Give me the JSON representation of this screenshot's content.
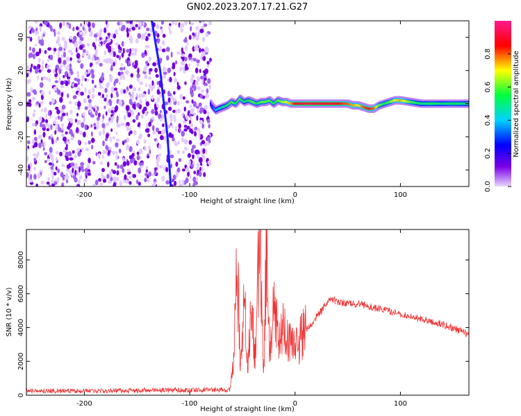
{
  "title": "GN02.2023.207.17.21.G27",
  "chart_data": [
    {
      "type": "heatmap",
      "xlabel": "Height of straight line (km)",
      "ylabel": "Frequency (Hz)",
      "xlim": [
        -255,
        165
      ],
      "ylim": [
        -50,
        50
      ],
      "xticks": [
        -200,
        -100,
        0,
        100
      ],
      "yticks": [
        -40,
        -20,
        0,
        20,
        40
      ],
      "grid": false,
      "colorbar": {
        "label": "Normalized spectral amplitude",
        "range": [
          0,
          1
        ],
        "ticks": [
          0.0,
          0.2,
          0.4,
          0.6,
          0.8
        ],
        "colors": [
          "#e9d6ff",
          "#7a00e6",
          "#0000ff",
          "#00d2ff",
          "#00ff40",
          "#ffff00",
          "#ff0000",
          "#ff1a8c"
        ]
      },
      "noise_region": {
        "x_range": [
          -255,
          -80
        ],
        "frequency_range": [
          -50,
          50
        ],
        "level": 0.15
      },
      "sweep_line": {
        "x": [
          -118,
          -121,
          -128,
          -136
        ],
        "frequency": [
          -50,
          -20,
          20,
          50
        ],
        "level": 0.22
      },
      "signal_track": {
        "x": [
          -80,
          -78,
          -75,
          -72,
          -68,
          -64,
          -60,
          -56,
          -52,
          -48,
          -44,
          -40,
          -36,
          -32,
          -28,
          -24,
          -20,
          -16,
          -12,
          -8,
          -4,
          0,
          10,
          20,
          30,
          40,
          50,
          55,
          60,
          65,
          70,
          75,
          80,
          85,
          90,
          95,
          100,
          110,
          120,
          130,
          140,
          150,
          165
        ],
        "frequency": [
          0,
          -2,
          -4,
          -3,
          -2,
          -1,
          1,
          0,
          3,
          1,
          2,
          1,
          0,
          1,
          1,
          2,
          0,
          2,
          1,
          1,
          0,
          0,
          0,
          0,
          0,
          0,
          0,
          -1,
          -1,
          -2,
          -3,
          -3,
          -1,
          0,
          1,
          2,
          2,
          1,
          0,
          0,
          0,
          0,
          0
        ],
        "amplitude": [
          0.25,
          0.3,
          0.4,
          0.45,
          0.5,
          0.55,
          0.6,
          0.55,
          0.6,
          0.5,
          0.55,
          0.6,
          0.55,
          0.6,
          0.6,
          0.6,
          0.55,
          0.6,
          0.65,
          0.7,
          0.75,
          0.85,
          0.9,
          0.9,
          0.88,
          0.86,
          0.8,
          0.75,
          0.7,
          0.8,
          0.85,
          0.8,
          0.6,
          0.55,
          0.6,
          0.7,
          0.75,
          0.6,
          0.5,
          0.55,
          0.5,
          0.55,
          0.5
        ]
      }
    },
    {
      "type": "line",
      "xlabel": "Height of straight line (km)",
      "ylabel": "SNR (10 * v/v)",
      "xlim": [
        -255,
        165
      ],
      "ylim": [
        0,
        9800
      ],
      "xticks": [
        -200,
        -100,
        0,
        100
      ],
      "yticks": [
        0,
        2000,
        4000,
        6000,
        8000
      ],
      "grid": false,
      "color": "#f03030",
      "series": [
        {
          "x": [
            -255,
            -200,
            -150,
            -100,
            -80,
            -62,
            -58,
            -55,
            -52,
            -48,
            -45,
            -42,
            -38,
            -35,
            -33,
            -30,
            -27,
            -24,
            -20,
            -15,
            -10,
            -5,
            0,
            5,
            10,
            15,
            20,
            25,
            30,
            35,
            40,
            50,
            60,
            80,
            100,
            120,
            140,
            165
          ],
          "y": [
            250,
            250,
            280,
            300,
            320,
            300,
            2500,
            8100,
            2000,
            6200,
            1500,
            5000,
            2500,
            7000,
            9800,
            1000,
            8600,
            2000,
            5500,
            3000,
            4500,
            3000,
            2800,
            3300,
            3800,
            4200,
            4600,
            5000,
            5500,
            5700,
            5500,
            5400,
            5400,
            5100,
            4800,
            4500,
            4200,
            3600
          ]
        }
      ]
    }
  ]
}
